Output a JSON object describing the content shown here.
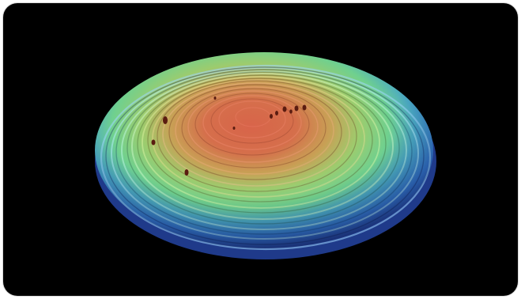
{
  "image": {
    "subject": "",
    "colors": {
      "background": "#000000",
      "frame": "#ffffff",
      "peak": "#d8644a",
      "mid": "#8fd07a",
      "edge": "#2a56b8"
    }
  }
}
